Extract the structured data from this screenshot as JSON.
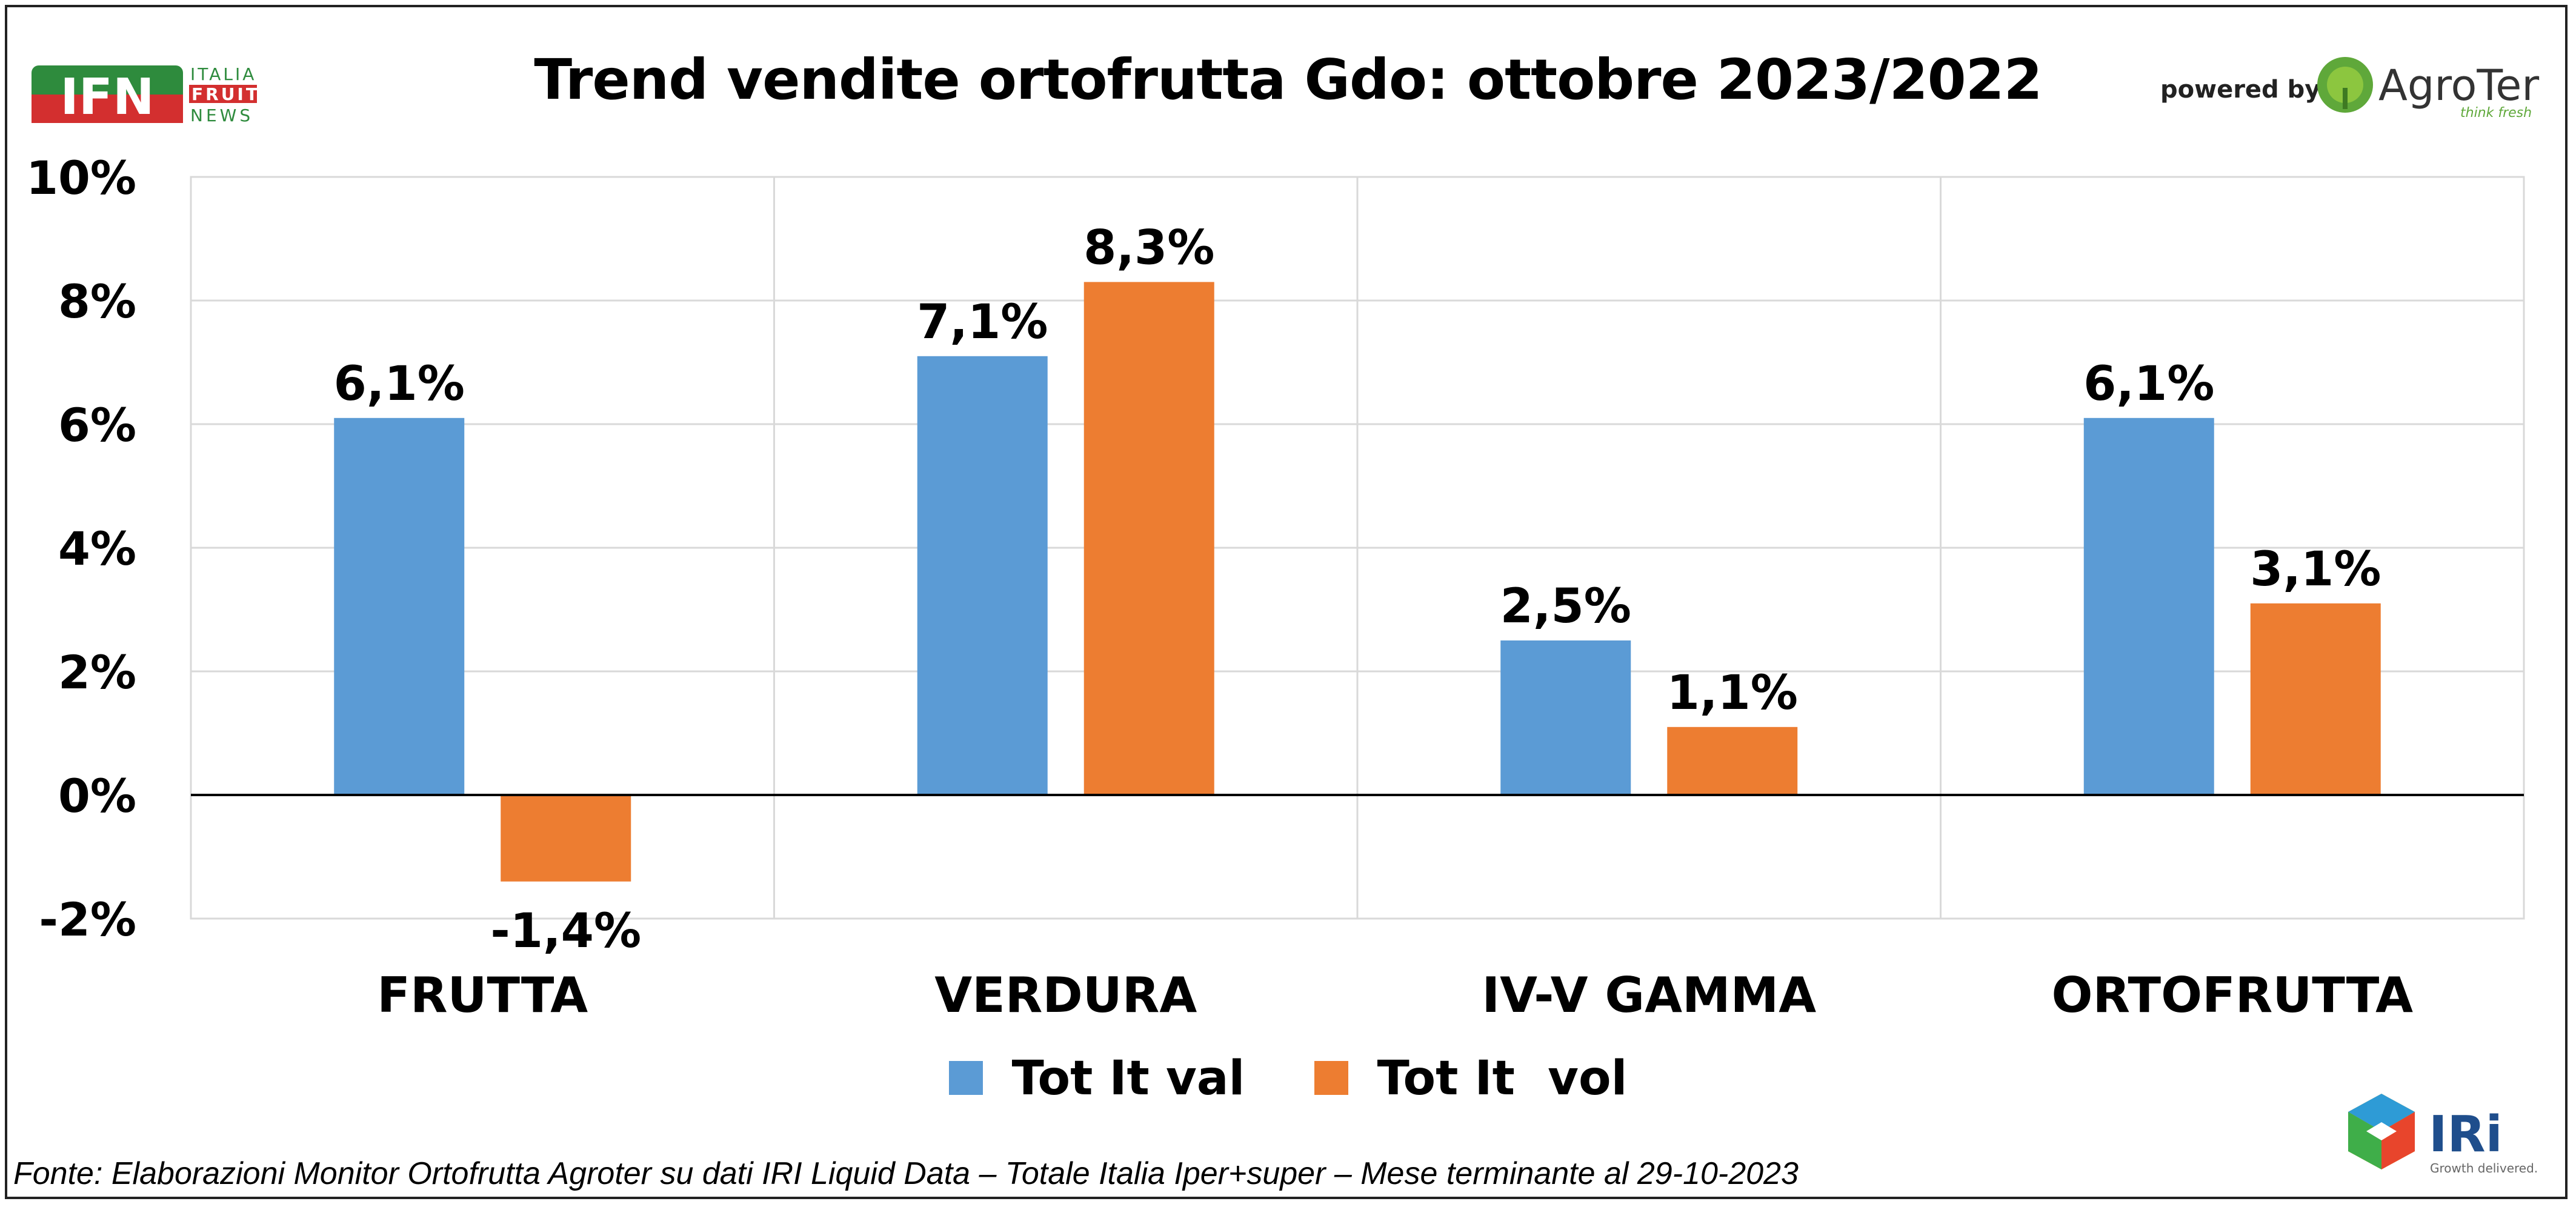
{
  "header": {
    "title": "Trend vendite ortofrutta Gdo: ottobre 2023/2022",
    "ifn_logo": {
      "mark": "IFN",
      "line1": "ITALIA",
      "line2": "FRUIT",
      "line3": "NEWS"
    },
    "powered_by": "powered by",
    "agroter_logo": {
      "name": "AgroTer",
      "tagline": "think fresh"
    },
    "iri_logo": {
      "name": "IRi",
      "tagline": "Growth delivered."
    }
  },
  "colors": {
    "val": "#5B9BD5",
    "vol": "#ED7D31",
    "grid": "#D9D9D9",
    "zero": "#000000"
  },
  "chart_data": {
    "type": "bar",
    "title": "Trend vendite ortofrutta Gdo: ottobre 2023/2022",
    "categories": [
      "FRUTTA",
      "VERDURA",
      "IV-V GAMMA",
      "ORTOFRUTTA"
    ],
    "series": [
      {
        "name": "Tot It val",
        "values": [
          6.1,
          7.1,
          2.5,
          6.1
        ],
        "labels": [
          "6,1%",
          "7,1%",
          "2,5%",
          "6,1%"
        ]
      },
      {
        "name": "Tot It  vol",
        "values": [
          -1.4,
          8.3,
          1.1,
          3.1
        ],
        "labels": [
          "-1,4%",
          "8,3%",
          "1,1%",
          "3,1%"
        ]
      }
    ],
    "ylim": [
      -2,
      10
    ],
    "yticks": [
      10,
      8,
      6,
      4,
      2,
      0,
      -2
    ],
    "ytick_labels": [
      "10%",
      "8%",
      "6%",
      "4%",
      "2%",
      "0%",
      "-2%"
    ],
    "grid": true,
    "legend_position": "bottom"
  },
  "footnote": "Fonte: Elaborazioni Monitor Ortofrutta Agroter su dati IRI Liquid Data – Totale Italia Iper+super – Mese terminante al 29-10-2023"
}
